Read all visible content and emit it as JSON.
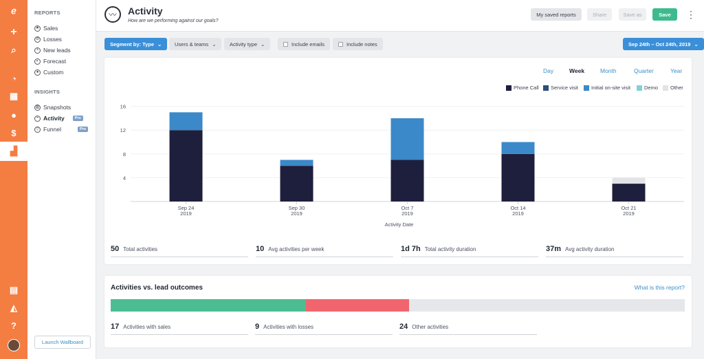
{
  "colors": {
    "accent": "#f47d42",
    "primary": "#3a8fd8",
    "save": "#3dbb8e",
    "phone_call": "#1e1f3d",
    "service_visit": "#2f4e7a",
    "onsite_visit": "#3b89c9",
    "demo": "#7fd3d6",
    "other": "#e2e3e6",
    "sales": "#4cbd93",
    "losses": "#f0656e",
    "other_activities": "#e6e7ea"
  },
  "rail_icons": [
    "brand-icon",
    "plus-icon",
    "search-icon",
    "dashboard-icon",
    "building-icon",
    "person-icon",
    "money-icon",
    "reports-icon",
    "calendar-icon",
    "notification-icon",
    "help-icon",
    "avatar"
  ],
  "sidebar": {
    "reports_heading": "REPORTS",
    "reports": [
      {
        "label": "Sales",
        "icon": "star-icon"
      },
      {
        "label": "Losses",
        "icon": "ban-icon"
      },
      {
        "label": "New leads",
        "icon": "person-plus-icon"
      },
      {
        "label": "Forecast",
        "icon": "forecast-icon"
      },
      {
        "label": "Custom",
        "icon": "custom-icon"
      }
    ],
    "insights_heading": "INSIGHTS",
    "insights": [
      {
        "label": "Snapshots",
        "icon": "snapshot-icon",
        "pro": ""
      },
      {
        "label": "Activity",
        "icon": "activity-icon",
        "pro": "Pro"
      },
      {
        "label": "Funnel",
        "icon": "funnel-icon",
        "pro": "Pro"
      }
    ],
    "launch_label": "Launch Wallboard"
  },
  "header": {
    "title": "Activity",
    "subtitle": "How are we performing against our goals?",
    "saved_reports": "My saved reports",
    "share": "Share",
    "save_as": "Save as",
    "save": "Save",
    "more_icon": "⋮"
  },
  "filters": {
    "segment": "Segment by: Type",
    "users": "Users & teams",
    "activity_type": "Activity type",
    "include_emails": "Include emails",
    "include_notes": "Include notes",
    "date_range": "Sep 24th – Oct 24th, 2019"
  },
  "chart_data": {
    "type": "bar",
    "stacked": true,
    "categories": [
      "Sep 24\n2019",
      "Sep 30\n2019",
      "Oct 7\n2019",
      "Oct 14\n2019",
      "Oct 21\n2019"
    ],
    "series": [
      {
        "name": "Phone Call",
        "values": [
          12,
          6,
          7,
          8,
          3
        ]
      },
      {
        "name": "Service visit",
        "values": [
          0,
          0,
          0,
          0,
          0
        ]
      },
      {
        "name": "Initial on-site visit",
        "values": [
          3,
          1,
          7,
          2,
          0
        ]
      },
      {
        "name": "Demo",
        "values": [
          0,
          0,
          0,
          0,
          0
        ]
      },
      {
        "name": "Other",
        "values": [
          0,
          0,
          0,
          0,
          1
        ]
      }
    ],
    "yticks": [
      4,
      8,
      12,
      16
    ],
    "ylim": [
      0,
      17
    ],
    "xlabel": "Activity Date",
    "grid": true,
    "legend": "top-right"
  },
  "ranges": [
    "Day",
    "Week",
    "Month",
    "Quarter",
    "Year"
  ],
  "selected_range": "Week",
  "stats": [
    {
      "value": "50",
      "label": "Total activities"
    },
    {
      "value": "10",
      "label": "Avg activities per week"
    },
    {
      "value": "1d 7h",
      "label": "Total activity duration"
    },
    {
      "value": "37m",
      "label": "Avg activity duration"
    }
  ],
  "outcomes": {
    "title": "Activities vs. lead outcomes",
    "link": "What is this report?",
    "bar": {
      "sales": 17,
      "losses": 9,
      "other": 24
    },
    "stats": [
      {
        "value": "17",
        "label": "Activities with sales"
      },
      {
        "value": "9",
        "label": "Activities with losses"
      },
      {
        "value": "24",
        "label": "Other activities"
      }
    ]
  }
}
